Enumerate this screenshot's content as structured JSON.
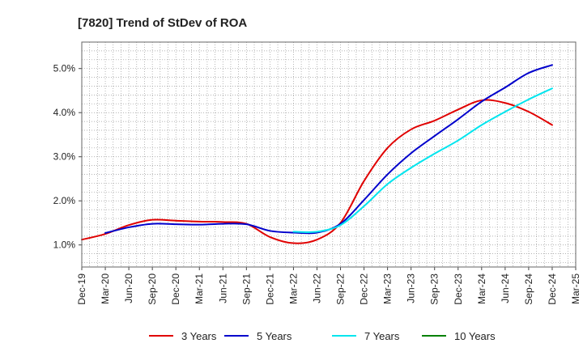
{
  "chart_data": {
    "type": "line",
    "title": "[7820]  Trend of StDev of ROA",
    "xlabel": "",
    "ylabel": "",
    "x": [
      "Dec-19",
      "Mar-20",
      "Jun-20",
      "Sep-20",
      "Dec-20",
      "Mar-21",
      "Jun-21",
      "Sep-21",
      "Dec-21",
      "Mar-22",
      "Jun-22",
      "Sep-22",
      "Dec-22",
      "Mar-23",
      "Jun-23",
      "Sep-23",
      "Dec-23",
      "Mar-24",
      "Jun-24",
      "Sep-24",
      "Dec-24",
      "Mar-25"
    ],
    "ylim": [
      0.5,
      5.6
    ],
    "yticks": [
      1.0,
      2.0,
      3.0,
      4.0,
      5.0
    ],
    "ytick_labels": [
      "1.0%",
      "2.0%",
      "3.0%",
      "4.0%",
      "5.0%"
    ],
    "grid": true,
    "legend_position": "bottom",
    "series": [
      {
        "name": "3 Years",
        "color": "#e00000",
        "values": [
          1.12,
          1.25,
          1.45,
          1.57,
          1.55,
          1.53,
          1.52,
          1.48,
          1.18,
          1.04,
          1.12,
          1.5,
          2.45,
          3.2,
          3.62,
          3.82,
          4.07,
          4.28,
          4.22,
          4.02,
          3.72,
          null
        ]
      },
      {
        "name": "5 Years",
        "color": "#0000cc",
        "values": [
          null,
          1.27,
          1.4,
          1.48,
          1.47,
          1.46,
          1.48,
          1.47,
          1.32,
          1.28,
          1.28,
          1.48,
          2.02,
          2.6,
          3.08,
          3.47,
          3.85,
          4.25,
          4.57,
          4.9,
          5.08,
          null
        ]
      },
      {
        "name": "7 Years",
        "color": "#00e5ee",
        "values": [
          null,
          null,
          null,
          null,
          null,
          null,
          null,
          null,
          null,
          1.3,
          1.3,
          1.45,
          1.88,
          2.38,
          2.75,
          3.07,
          3.37,
          3.72,
          4.02,
          4.3,
          4.55,
          null
        ]
      },
      {
        "name": "10 Years",
        "color": "#008000",
        "values": [
          null,
          null,
          null,
          null,
          null,
          null,
          null,
          null,
          null,
          null,
          null,
          null,
          null,
          null,
          null,
          null,
          null,
          null,
          null,
          null,
          null,
          null
        ]
      }
    ]
  }
}
